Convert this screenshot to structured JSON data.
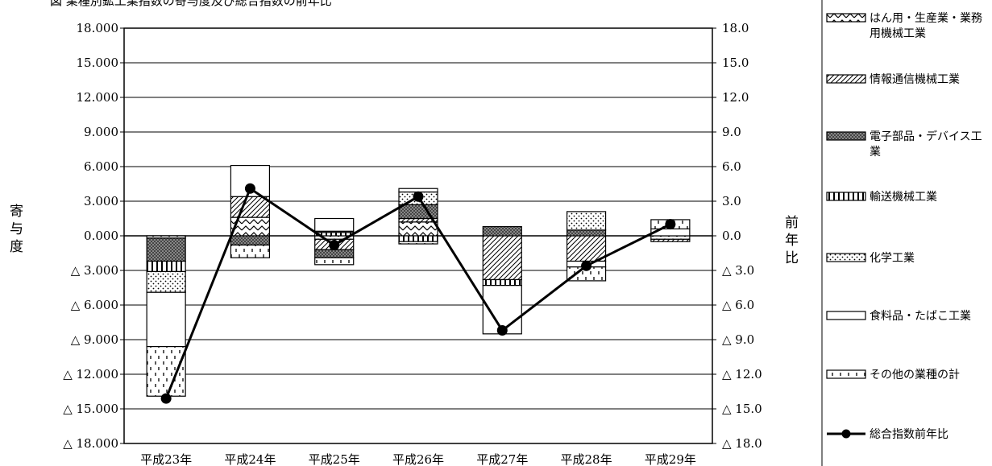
{
  "chart_data": {
    "type": "bar",
    "title": "図 業種別鉱工業指数の寄与度及び総合指数の前年比",
    "ylabel_left": "寄与度",
    "ylabel_right": "前年比",
    "categories": [
      "平成23年",
      "平成24年",
      "平成25年",
      "平成26年",
      "平成27年",
      "平成28年",
      "平成29年"
    ],
    "left_axis": {
      "ylim": [
        -18,
        18
      ],
      "ticks": [
        "18.000",
        "15.000",
        "12.000",
        "9.000",
        "6.000",
        "3.000",
        "0.000",
        "△ 3.000",
        "△ 6.000",
        "△ 9.000",
        "△ 12.000",
        "△ 15.000",
        "△ 18.000"
      ]
    },
    "right_axis": {
      "ylim": [
        -18,
        18
      ],
      "ticks": [
        "18.0",
        "15.0",
        "12.0",
        "9.0",
        "6.0",
        "3.0",
        "0.0",
        "△ 3.0",
        "△ 6.0",
        "△ 9.0",
        "△ 12.0",
        "△ 15.0",
        "△ 18.0"
      ]
    },
    "grid": true,
    "legend_position": "right",
    "series": [
      {
        "name": "はん用・生産業・業務用機械工業",
        "pattern": "zigzag",
        "values": [
          -0.2,
          1.6,
          -0.3,
          1.2,
          0.0,
          0.0,
          -0.3
        ]
      },
      {
        "name": "情報通信機械工業",
        "pattern": "diag",
        "values": [
          0.0,
          1.8,
          -0.9,
          0.3,
          -3.8,
          -2.2,
          -0.2
        ]
      },
      {
        "name": "電子部品・デバイス工業",
        "pattern": "crosshatch",
        "values": [
          -2.0,
          -0.8,
          -0.7,
          1.2,
          0.8,
          0.5,
          0.0
        ]
      },
      {
        "name": "輸送機械工業",
        "pattern": "vlines",
        "values": [
          -0.9,
          0.0,
          0.3,
          -0.5,
          -0.5,
          0.0,
          0.0
        ]
      },
      {
        "name": "化学工業",
        "pattern": "dots",
        "values": [
          -1.8,
          0.0,
          0.1,
          1.1,
          0.0,
          1.6,
          0.0
        ]
      },
      {
        "name": "食料品・たばこ工業",
        "pattern": "blank",
        "values": [
          -4.7,
          2.7,
          1.1,
          0.3,
          -4.2,
          -0.5,
          0.6
        ]
      },
      {
        "name": "その他の業種の計",
        "pattern": "dashes",
        "values": [
          -4.3,
          -1.1,
          -0.6,
          -0.2,
          0.0,
          -1.2,
          0.8
        ]
      }
    ],
    "line": {
      "name": "総合指数前年比",
      "values": [
        -14.1,
        4.1,
        -0.8,
        3.4,
        -8.2,
        -2.6,
        1.0
      ]
    }
  }
}
